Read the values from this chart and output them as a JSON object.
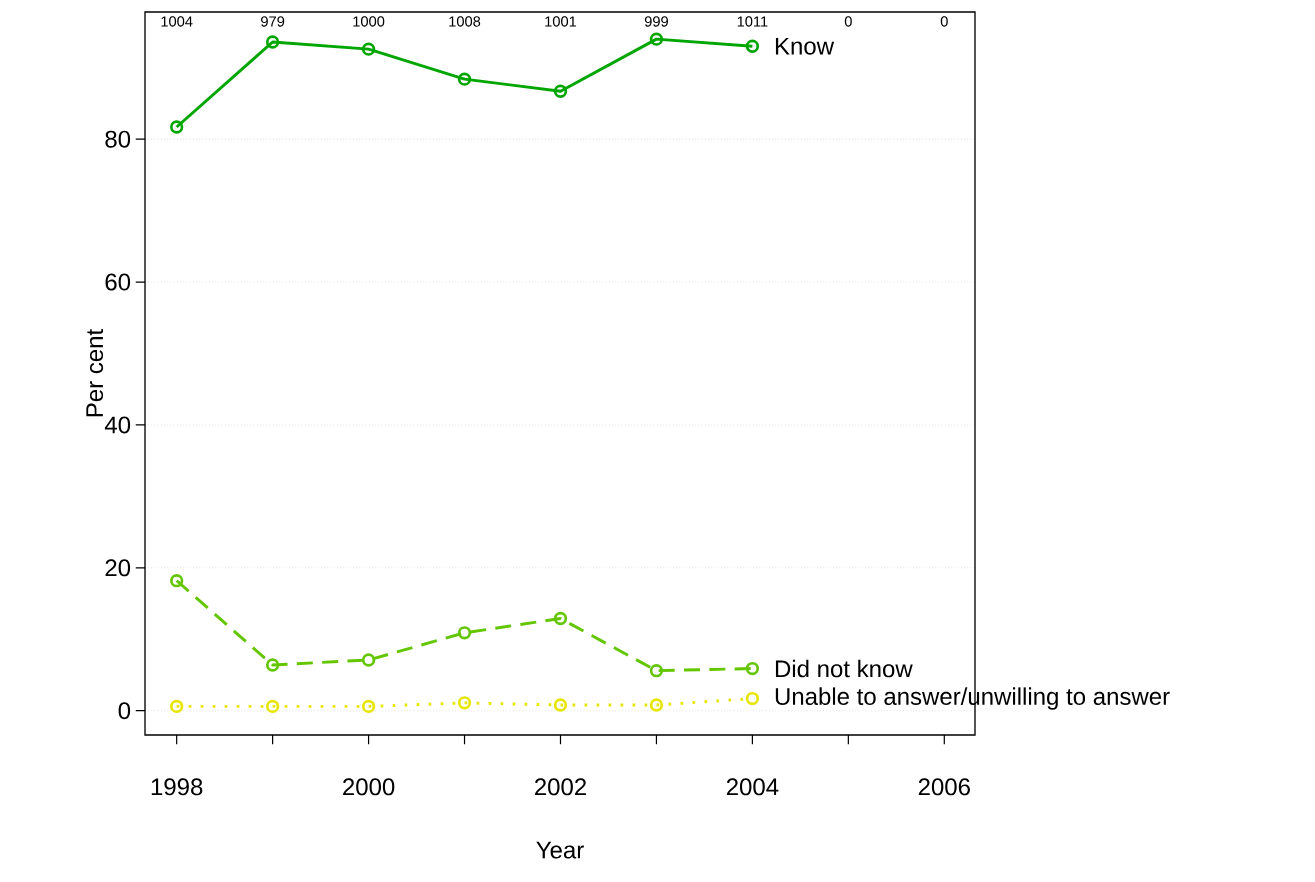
{
  "chart_data": {
    "type": "line",
    "xlabel": "Year",
    "ylabel": "Per cent",
    "xlim": [
      1997.67,
      2006.32
    ],
    "ylim": [
      -3.4,
      97.8
    ],
    "xticks": [
      1998,
      {
        "value": 1999,
        "label": null
      },
      2000,
      {
        "value": 2001,
        "label": null
      },
      2002,
      {
        "value": 2003,
        "label": null
      },
      2004,
      {
        "value": 2005,
        "label": null
      },
      2006
    ],
    "yticks": [
      0,
      20,
      40,
      60,
      80
    ],
    "grid": "y",
    "legend": false,
    "marker": "circle",
    "x": [
      1998,
      1999,
      2000,
      2001,
      2002,
      2003,
      2004
    ],
    "series": [
      {
        "name": "Know",
        "color": "#00a600",
        "line_style": "solid",
        "values": [
          81.7,
          93.6,
          92.6,
          88.4,
          86.7,
          94.0,
          93.0
        ]
      },
      {
        "name": "Did not know",
        "color": "#63c600",
        "line_style": "dashed",
        "values": [
          18.2,
          6.4,
          7.1,
          10.9,
          12.9,
          5.6,
          5.9
        ]
      },
      {
        "name": "Unable to answer/unwilling to answer",
        "color": "#e6e600",
        "line_style": "dotted",
        "values": [
          0.6,
          0.6,
          0.6,
          1.1,
          0.8,
          0.8,
          1.7
        ]
      }
    ],
    "annotations": [
      "1004",
      "979",
      "1000",
      "1008",
      "1001",
      "999",
      "1011",
      "0",
      "0"
    ]
  }
}
